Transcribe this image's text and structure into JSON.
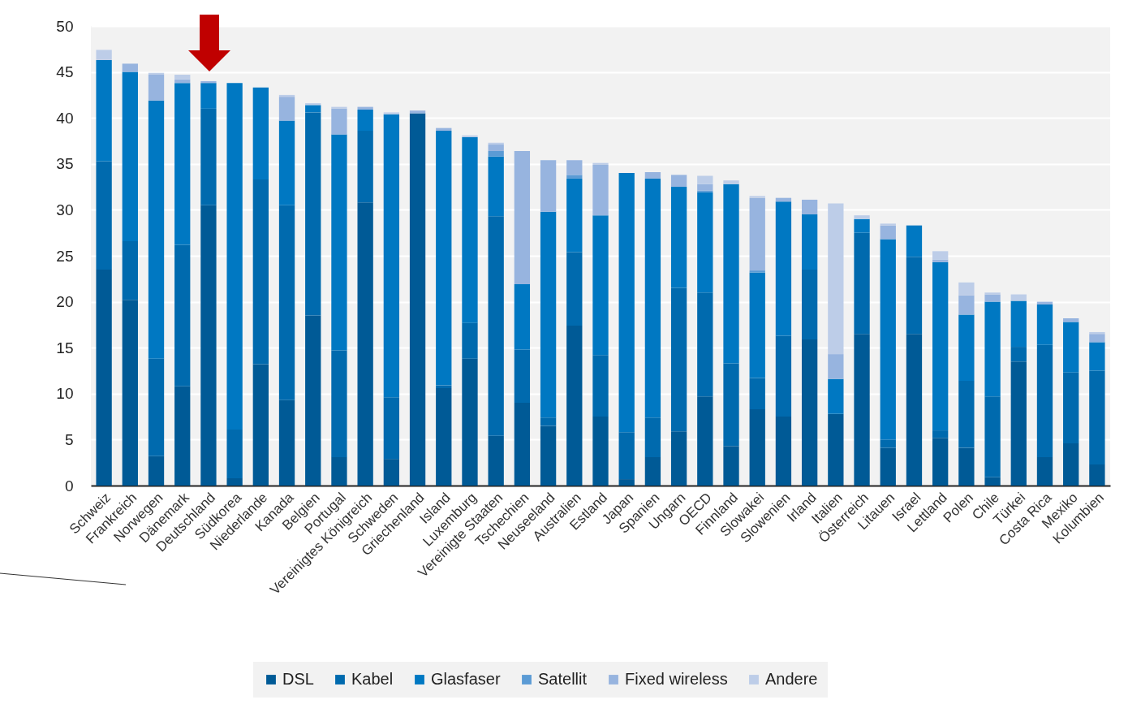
{
  "chart_data": {
    "type": "bar",
    "stacked": true,
    "categories": [
      "Schweiz",
      "Frankreich",
      "Norwegen",
      "Dänemark",
      "Deutschland",
      "Südkorea",
      "Niederlande",
      "Kanada",
      "Belgien",
      "Portugal",
      "Vereinigtes Königreich",
      "Schweden",
      "Griechenland",
      "Island",
      "Luxemburg",
      "Vereinigte Staaten",
      "Tschechien",
      "Neuseeland",
      "Australien",
      "Estland",
      "Japan",
      "Spanien",
      "Ungarn",
      "OECD",
      "Finnland",
      "Slowakei",
      "Slowenien",
      "Irland",
      "Italien",
      "Österreich",
      "Litauen",
      "Israel",
      "Lettland",
      "Polen",
      "Chile",
      "Türkei",
      "Costa Rica",
      "Mexiko",
      "Kolumbien"
    ],
    "series": [
      {
        "name": "DSL",
        "color": "#005a96",
        "values": [
          23.5,
          20.2,
          3.2,
          10.8,
          30.5,
          0.8,
          13.2,
          9.3,
          18.5,
          3.1,
          30.8,
          2.9,
          40.5,
          10.6,
          13.8,
          5.4,
          9.0,
          6.5,
          17.4,
          7.5,
          0.7,
          3.1,
          5.9,
          9.7,
          4.3,
          8.3,
          7.5,
          15.9,
          7.8,
          16.5,
          4.1,
          16.5,
          5.2,
          4.1,
          0.9,
          13.5,
          3.1,
          4.6,
          2.3
        ]
      },
      {
        "name": "Kabel",
        "color": "#006aae",
        "values": [
          11.8,
          6.4,
          10.6,
          15.4,
          10.5,
          5.3,
          20.1,
          21.2,
          22.1,
          11.6,
          7.8,
          6.7,
          0,
          0.3,
          3.9,
          23.9,
          5.8,
          0.9,
          8.0,
          6.7,
          5.1,
          4.3,
          15.6,
          11.3,
          9.0,
          3.4,
          8.8,
          7.6,
          0,
          11.0,
          0.9,
          8.4,
          0.8,
          7.3,
          8.8,
          1.6,
          12.2,
          7.7,
          10.2
        ]
      },
      {
        "name": "Glasfaser",
        "color": "#0078c2",
        "values": [
          11.0,
          18.4,
          28.1,
          17.6,
          2.8,
          37.7,
          10.0,
          9.2,
          0.8,
          23.5,
          2.3,
          30.8,
          0,
          27.7,
          20.2,
          6.5,
          7.1,
          22.4,
          8.0,
          15.2,
          28.2,
          26.0,
          11.0,
          10.9,
          19.5,
          11.5,
          14.6,
          6.0,
          3.8,
          1.5,
          21.8,
          3.4,
          18.3,
          7.2,
          10.3,
          5.0,
          4.4,
          5.5,
          3.1
        ]
      },
      {
        "name": "Satellit",
        "color": "#5b9bd5",
        "values": [
          0,
          0,
          0,
          0,
          0,
          0,
          0,
          0,
          0,
          0,
          0,
          0,
          0,
          0,
          0,
          0.6,
          0,
          0,
          0.4,
          0,
          0,
          0,
          0,
          0.2,
          0,
          0.2,
          0,
          0,
          0,
          0,
          0,
          0,
          0,
          0,
          0,
          0,
          0,
          0,
          0
        ]
      },
      {
        "name": "Fixed wireless",
        "color": "#97b4df",
        "values": [
          0,
          0.9,
          2.8,
          0.4,
          0.2,
          0,
          0,
          2.6,
          0,
          2.8,
          0.3,
          0,
          0.3,
          0.3,
          0,
          0.7,
          14.5,
          5.6,
          1.6,
          5.5,
          0,
          0.7,
          1.3,
          0.7,
          0,
          7.9,
          0.4,
          1.6,
          2.7,
          0,
          1.5,
          0,
          0.3,
          2.1,
          0.8,
          0,
          0.3,
          0.4,
          0.9
        ]
      },
      {
        "name": "Andere",
        "color": "#bdcde8",
        "values": [
          1.1,
          0,
          0.2,
          0.5,
          0,
          0,
          0,
          0.2,
          0.2,
          0.2,
          0,
          0.2,
          0,
          0,
          0.2,
          0.2,
          0,
          0,
          0,
          0.2,
          0,
          0,
          0,
          0.9,
          0.4,
          0.2,
          0,
          0,
          16.4,
          0.4,
          0.2,
          0,
          0.9,
          1.4,
          0.2,
          0.7,
          0,
          0,
          0.2
        ]
      }
    ],
    "ylim": [
      0,
      50
    ],
    "yticks": [
      0,
      5,
      10,
      15,
      20,
      25,
      30,
      35,
      40,
      45,
      50
    ],
    "grid": "y",
    "legend": "bottom"
  }
}
